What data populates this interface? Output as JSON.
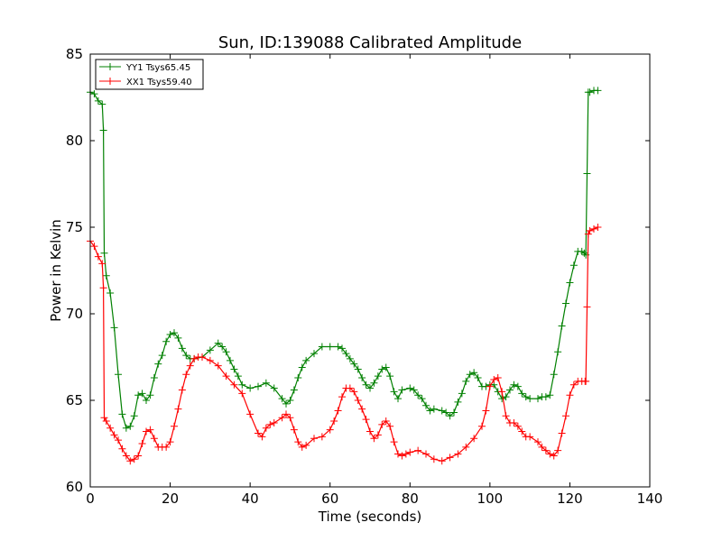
{
  "chart_data": {
    "type": "line",
    "title": "Sun, ID:139088 Calibrated Amplitude",
    "xlabel": "Time (seconds)",
    "ylabel": "Power in Kelvin",
    "xlim": [
      0,
      140
    ],
    "ylim": [
      60,
      85
    ],
    "xticks": [
      0,
      20,
      40,
      60,
      80,
      100,
      120,
      140
    ],
    "yticks": [
      60,
      65,
      70,
      75,
      80,
      85
    ],
    "grid": false,
    "legend_position": "top-left",
    "marker": "+",
    "series": [
      {
        "name": "YY1 Tsys65.45",
        "color": "#008000",
        "x": [
          0,
          1,
          2,
          3,
          3.3,
          3.5,
          4,
          5,
          6,
          7,
          8,
          9,
          10,
          11,
          12,
          13,
          14,
          15,
          16,
          17,
          18,
          19,
          20,
          21,
          22,
          23,
          24,
          25,
          26,
          28,
          30,
          32,
          33,
          34,
          35,
          36,
          37,
          38,
          40,
          42,
          44,
          46,
          48,
          49,
          50,
          51,
          52,
          53,
          54,
          56,
          58,
          60,
          62,
          63,
          64,
          65,
          66,
          67,
          68,
          69,
          70,
          71,
          72,
          73,
          74,
          75,
          76,
          77,
          78,
          80,
          81,
          82,
          83,
          84,
          85,
          86,
          88,
          89,
          90,
          91,
          92,
          93,
          94,
          95,
          96,
          97,
          98,
          99,
          100,
          101,
          102,
          103,
          104,
          105,
          106,
          107,
          108,
          109,
          110,
          112,
          113,
          114,
          115,
          116,
          117,
          118,
          119,
          120,
          121,
          122,
          123,
          123.6,
          124,
          124.3,
          124.6,
          125,
          126,
          127
        ],
        "y": [
          82.8,
          82.7,
          82.3,
          82.1,
          80.6,
          73.5,
          72.2,
          71.2,
          69.2,
          66.5,
          64.2,
          63.4,
          63.5,
          64.1,
          65.3,
          65.4,
          65.0,
          65.3,
          66.3,
          67.1,
          67.6,
          68.4,
          68.8,
          68.9,
          68.6,
          68.0,
          67.6,
          67.4,
          67.4,
          67.5,
          67.9,
          68.3,
          68.1,
          67.8,
          67.3,
          66.8,
          66.4,
          65.9,
          65.7,
          65.8,
          66.0,
          65.7,
          65.1,
          64.8,
          65.0,
          65.6,
          66.3,
          66.9,
          67.3,
          67.7,
          68.1,
          68.1,
          68.1,
          68.0,
          67.7,
          67.4,
          67.1,
          66.8,
          66.3,
          65.9,
          65.7,
          66.0,
          66.4,
          66.8,
          66.9,
          66.4,
          65.5,
          65.1,
          65.6,
          65.7,
          65.6,
          65.3,
          65.1,
          64.7,
          64.4,
          64.5,
          64.4,
          64.3,
          64.1,
          64.3,
          64.9,
          65.4,
          66.1,
          66.5,
          66.6,
          66.3,
          65.8,
          65.8,
          65.9,
          65.9,
          65.5,
          65.1,
          65.2,
          65.6,
          65.9,
          65.8,
          65.4,
          65.2,
          65.1,
          65.1,
          65.2,
          65.2,
          65.3,
          66.5,
          67.8,
          69.3,
          70.6,
          71.8,
          72.8,
          73.6,
          73.6,
          73.5,
          73.4,
          78.1,
          82.8,
          82.8,
          82.9,
          82.9
        ]
      },
      {
        "name": "XX1 Tsys59.40",
        "color": "#ff0000",
        "x": [
          0,
          1,
          2,
          3,
          3.3,
          3.5,
          4,
          5,
          6,
          7,
          8,
          9,
          10,
          11,
          12,
          13,
          14,
          15,
          16,
          17,
          18,
          19,
          20,
          21,
          22,
          23,
          24,
          25,
          26,
          27,
          28,
          30,
          32,
          34,
          36,
          38,
          40,
          42,
          43,
          44,
          45,
          46,
          48,
          49,
          50,
          51,
          52,
          53,
          54,
          56,
          58,
          60,
          61,
          62,
          63,
          64,
          65,
          66,
          67,
          68,
          69,
          70,
          71,
          72,
          73,
          74,
          75,
          76,
          77,
          78,
          79,
          80,
          82,
          84,
          86,
          88,
          90,
          92,
          94,
          96,
          98,
          99,
          100,
          101,
          102,
          103,
          104,
          105,
          106,
          107,
          108,
          109,
          110,
          112,
          113,
          114,
          115,
          116,
          117,
          118,
          119,
          120,
          121,
          122,
          123,
          123.8,
          124,
          124.3,
          124.6,
          125,
          126,
          127
        ],
        "y": [
          74.2,
          73.9,
          73.3,
          72.9,
          71.5,
          64.0,
          63.8,
          63.4,
          63.0,
          62.7,
          62.2,
          61.8,
          61.5,
          61.6,
          61.8,
          62.5,
          63.2,
          63.3,
          62.8,
          62.3,
          62.3,
          62.3,
          62.6,
          63.5,
          64.5,
          65.6,
          66.5,
          67.0,
          67.4,
          67.5,
          67.5,
          67.3,
          67.0,
          66.4,
          65.9,
          65.4,
          64.2,
          63.1,
          62.9,
          63.4,
          63.6,
          63.7,
          64.0,
          64.2,
          64.0,
          63.3,
          62.6,
          62.3,
          62.4,
          62.8,
          62.9,
          63.3,
          63.8,
          64.4,
          65.2,
          65.7,
          65.7,
          65.5,
          65.0,
          64.5,
          63.9,
          63.2,
          62.8,
          63.0,
          63.6,
          63.8,
          63.5,
          62.6,
          61.9,
          61.8,
          61.9,
          62.0,
          62.1,
          61.9,
          61.6,
          61.5,
          61.7,
          61.9,
          62.3,
          62.8,
          63.5,
          64.4,
          65.8,
          66.2,
          66.3,
          65.5,
          64.1,
          63.7,
          63.7,
          63.5,
          63.2,
          62.9,
          62.9,
          62.6,
          62.3,
          62.1,
          61.9,
          61.8,
          62.1,
          63.1,
          64.1,
          65.3,
          65.9,
          66.1,
          66.1,
          66.1,
          66.1,
          70.4,
          74.6,
          74.8,
          74.9,
          75.0
        ]
      }
    ]
  }
}
